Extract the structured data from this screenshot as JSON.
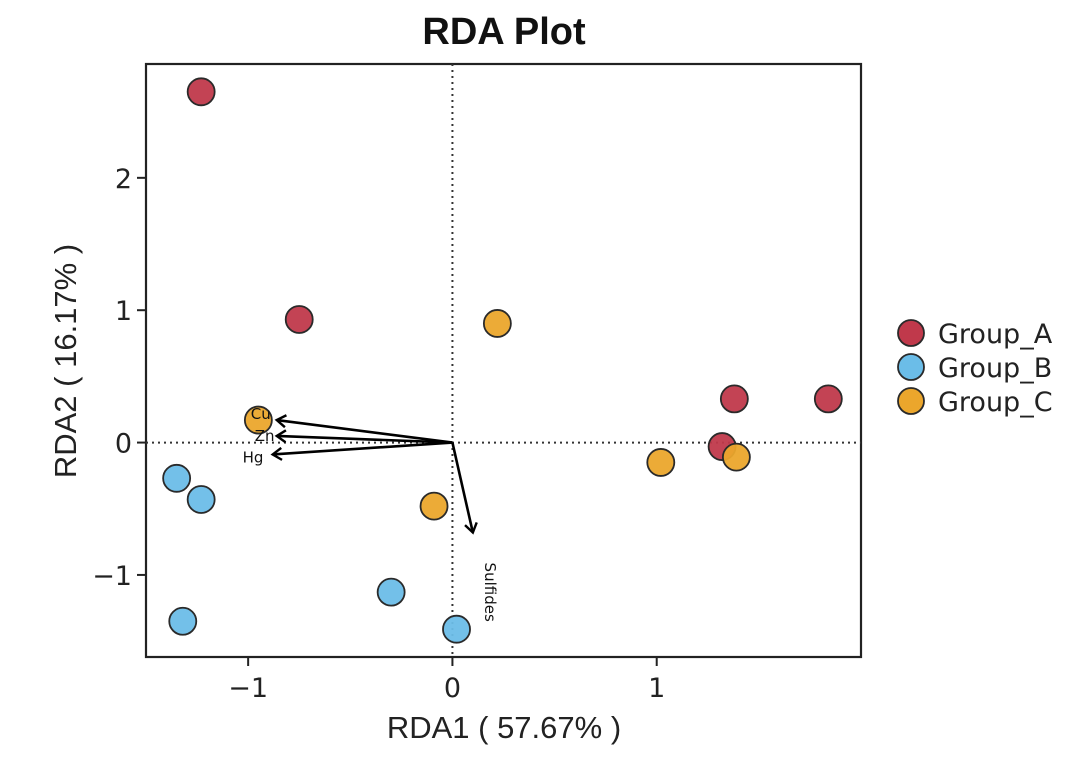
{
  "chart_data": {
    "type": "scatter",
    "title": "RDA Plot",
    "xlabel": "RDA1 ( 57.67% )",
    "ylabel": "RDA2 ( 16.17% )",
    "xlim": [
      -1.5,
      2.0
    ],
    "ylim": [
      -1.62,
      2.86
    ],
    "xticks": [
      -1,
      0,
      1
    ],
    "yticks": [
      -1,
      0,
      1,
      2
    ],
    "xtick_labels": [
      "−1",
      "0",
      "1"
    ],
    "ytick_labels": [
      "−1",
      "0",
      "1",
      "2"
    ],
    "reference_lines": {
      "x": 0,
      "y": 0,
      "style": "dotted"
    },
    "grid": false,
    "legend_position": "right",
    "series": [
      {
        "name": "Group_A",
        "color": "#C0394B",
        "points": [
          [
            -1.23,
            2.65
          ],
          [
            -0.75,
            0.93
          ],
          [
            1.38,
            0.33
          ],
          [
            1.84,
            0.33
          ],
          [
            1.32,
            -0.03
          ]
        ]
      },
      {
        "name": "Group_B",
        "color": "#6BBDE8",
        "points": [
          [
            -1.35,
            -0.27
          ],
          [
            -1.23,
            -0.43
          ],
          [
            -1.32,
            -1.35
          ],
          [
            -0.3,
            -1.13
          ],
          [
            0.02,
            -1.41
          ]
        ]
      },
      {
        "name": "Group_C",
        "color": "#EBA62C",
        "points": [
          [
            -0.95,
            0.17
          ],
          [
            0.22,
            0.9
          ],
          [
            -0.09,
            -0.48
          ],
          [
            1.02,
            -0.15
          ],
          [
            1.39,
            -0.11
          ]
        ]
      }
    ],
    "arrows": [
      {
        "label": "Cu",
        "x": -0.86,
        "y": 0.17
      },
      {
        "label": "Zn",
        "x": -0.86,
        "y": 0.05
      },
      {
        "label": "Hg",
        "x": -0.88,
        "y": -0.09
      },
      {
        "label": "Sulfides",
        "x": 0.1,
        "y": -0.68
      }
    ]
  }
}
